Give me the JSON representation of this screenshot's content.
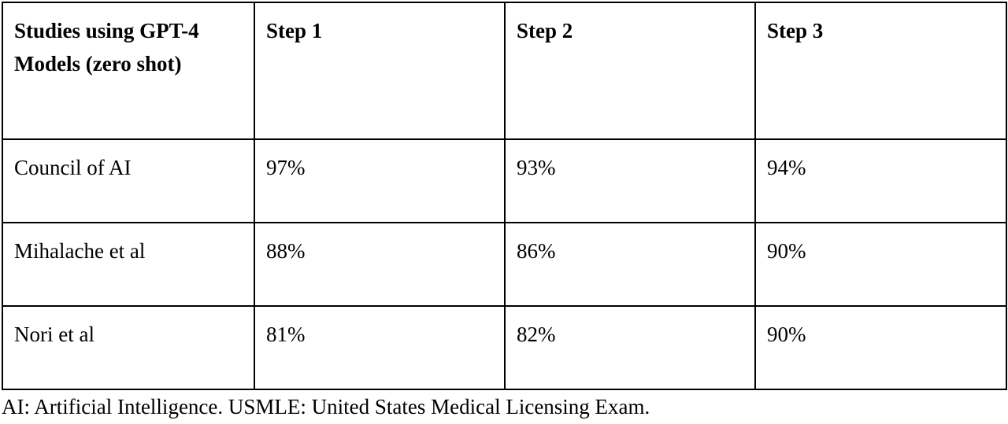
{
  "table": {
    "header": [
      "Studies using GPT-4 Models (zero shot)",
      "Step 1",
      "Step 2",
      "Step 3"
    ],
    "rows": [
      [
        "Council of AI",
        "97%",
        "93%",
        "94%"
      ],
      [
        "Mihalache et al",
        "88%",
        "86%",
        "90%"
      ],
      [
        "Nori et al",
        "81%",
        "82%",
        "90%"
      ]
    ]
  },
  "footnote": "AI: Artificial Intelligence. USMLE: United States Medical Licensing Exam."
}
